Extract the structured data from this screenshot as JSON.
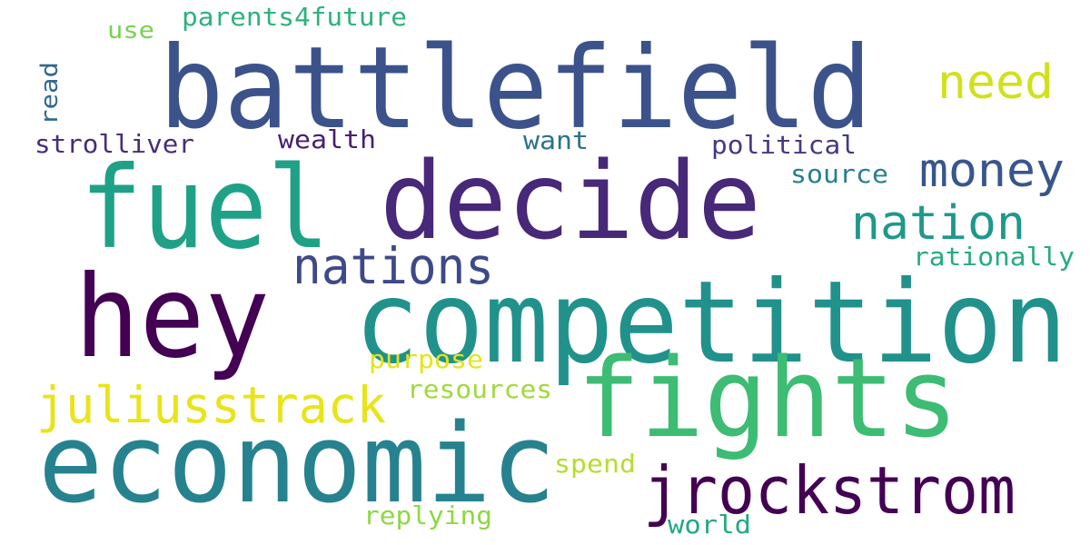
{
  "words": [
    {
      "text": "battlefield",
      "color": "#3b528b"
    },
    {
      "text": "competition",
      "color": "#21918c"
    },
    {
      "text": "decide",
      "color": "#482878"
    },
    {
      "text": "fuel",
      "color": "#1fa187"
    },
    {
      "text": "hey",
      "color": "#440154"
    },
    {
      "text": "economic",
      "color": "#26828e"
    },
    {
      "text": "fights",
      "color": "#3dbc74"
    },
    {
      "text": "jrockstrom",
      "color": "#440154"
    },
    {
      "text": "juliusstrack",
      "color": "#e8e419"
    },
    {
      "text": "nations",
      "color": "#3e4989"
    },
    {
      "text": "nation",
      "color": "#1f988b"
    },
    {
      "text": "money",
      "color": "#39568c"
    },
    {
      "text": "need",
      "color": "#d0e11c"
    },
    {
      "text": "parents4future",
      "color": "#2db27d"
    },
    {
      "text": "use",
      "color": "#7ad151"
    },
    {
      "text": "read",
      "color": "#31688e"
    },
    {
      "text": "strolliver",
      "color": "#472d7b"
    },
    {
      "text": "wealth",
      "color": "#481f70"
    },
    {
      "text": "want",
      "color": "#2c728e"
    },
    {
      "text": "political",
      "color": "#443983"
    },
    {
      "text": "source",
      "color": "#277f8e"
    },
    {
      "text": "rationally",
      "color": "#25ab82"
    },
    {
      "text": "purpose",
      "color": "#e5e419"
    },
    {
      "text": "resources",
      "color": "#a0da39"
    },
    {
      "text": "spend",
      "color": "#b5de2b"
    },
    {
      "text": "replying",
      "color": "#8fd744"
    },
    {
      "text": "world",
      "color": "#22a884"
    }
  ]
}
